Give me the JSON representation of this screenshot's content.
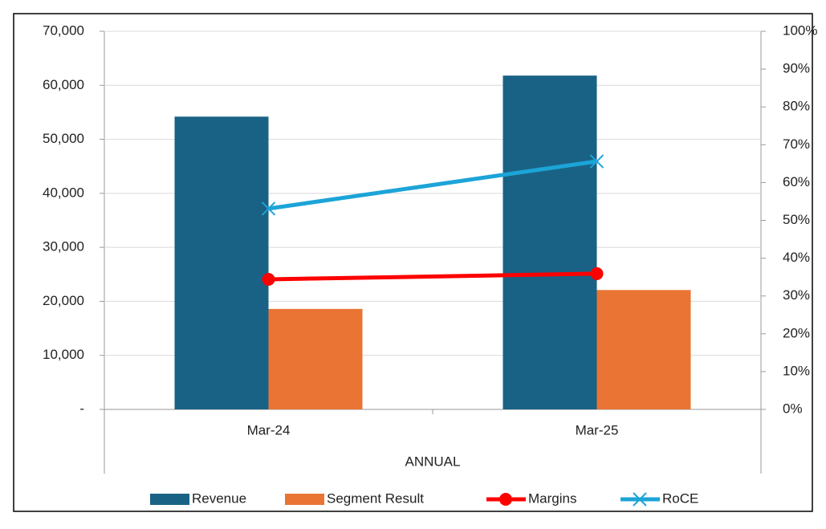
{
  "chart_data": {
    "type": "bar-line",
    "x_label": "ANNUAL",
    "categories": [
      "Mar-24",
      "Mar-25"
    ],
    "series": [
      {
        "name": "Revenue",
        "color": "#1a6285",
        "kind": "bar",
        "values": [
          54200,
          61800
        ]
      },
      {
        "name": "Segment Result",
        "color": "#e97433",
        "kind": "bar",
        "values": [
          18600,
          22100
        ]
      },
      {
        "name": "Margins",
        "color": "#ff0000",
        "kind": "line",
        "marker": "circle",
        "axis": "y2",
        "values": [
          34.4,
          35.9
        ]
      },
      {
        "name": "RoCE",
        "color": "#1ca4d8",
        "kind": "line",
        "marker": "x",
        "axis": "y2",
        "values": [
          53.1,
          65.6
        ]
      }
    ],
    "ylim": [
      0,
      70000
    ],
    "yticks": [
      {
        "value": 0,
        "label": "-"
      },
      {
        "value": 10000,
        "label": "10,000"
      },
      {
        "value": 20000,
        "label": "20,000"
      },
      {
        "value": 30000,
        "label": "30,000"
      },
      {
        "value": 40000,
        "label": "40,000"
      },
      {
        "value": 50000,
        "label": "50,000"
      },
      {
        "value": 60000,
        "label": "60,000"
      },
      {
        "value": 70000,
        "label": "70,000"
      }
    ],
    "y2lim": [
      0,
      100
    ],
    "y2ticks": [
      {
        "value": 0,
        "label": "0%"
      },
      {
        "value": 10,
        "label": "10%"
      },
      {
        "value": 20,
        "label": "20%"
      },
      {
        "value": 30,
        "label": "30%"
      },
      {
        "value": 40,
        "label": "40%"
      },
      {
        "value": 50,
        "label": "50%"
      },
      {
        "value": 60,
        "label": "60%"
      },
      {
        "value": 70,
        "label": "70%"
      },
      {
        "value": 80,
        "label": "80%"
      },
      {
        "value": 90,
        "label": "90%"
      },
      {
        "value": 100,
        "label": "100%"
      }
    ],
    "grid": true,
    "legend": "bottom"
  }
}
